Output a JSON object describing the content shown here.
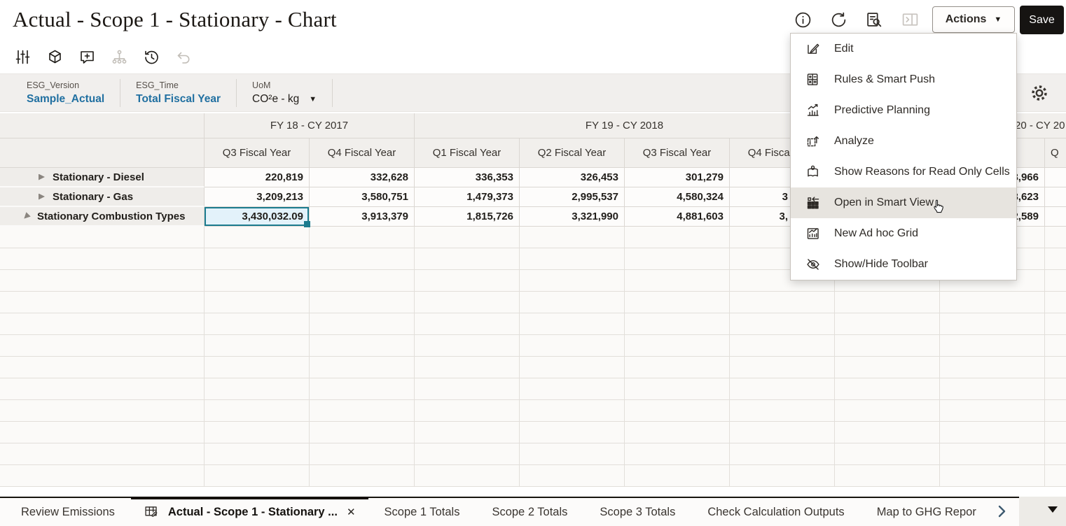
{
  "colors": {
    "accent_blue": "#2170a1",
    "selection_teal": "#1b7b8e",
    "save_button_bg": "#161412",
    "pov_bg": "#f1efed",
    "header_cell_bg": "#f1efec",
    "menu_highlight": "#e7e4df"
  },
  "header": {
    "title": "Actual - Scope 1 - Stationary - Chart",
    "icons": [
      {
        "name": "info-icon"
      },
      {
        "name": "refresh-icon"
      },
      {
        "name": "job-console-icon"
      },
      {
        "name": "open-panel-icon",
        "disabled": true
      }
    ],
    "actions_label": "Actions",
    "actions_caret": "▼",
    "save_label": "Save"
  },
  "toolbar": {
    "icons": [
      {
        "name": "adjust-pov-icon",
        "disabled": false
      },
      {
        "name": "cube-icon",
        "disabled": false
      },
      {
        "name": "add-comment-icon",
        "disabled": false
      },
      {
        "name": "hierarchy-icon",
        "disabled": true
      },
      {
        "name": "history-icon",
        "disabled": false
      },
      {
        "name": "undo-icon",
        "disabled": true
      }
    ]
  },
  "pov": {
    "items": [
      {
        "label": "ESG_Version",
        "value": "Sample_Actual",
        "style": "link"
      },
      {
        "label": "ESG_Time",
        "value": "Total Fiscal Year",
        "style": "link"
      },
      {
        "label": "UoM",
        "value": "CO²e - kg",
        "style": "dropdown",
        "caret": "▼"
      }
    ],
    "gear": "settings-gear-icon"
  },
  "grid": {
    "groups": [
      {
        "label": "FY 18 - CY 2017",
        "span": 2
      },
      {
        "label": "FY 19 - CY 2018",
        "span": 4
      },
      {
        "label": "20 - CY 20",
        "span": 3,
        "fragment": true
      }
    ],
    "columns": [
      "Q3 Fiscal Year",
      "Q4 Fiscal Year",
      "Q1 Fiscal Year",
      "Q2 Fiscal Year",
      "Q3 Fiscal Year",
      "Q4 Fiscal Year",
      "",
      "r",
      "Q"
    ],
    "rows": [
      {
        "label": "Stationary - Diesel",
        "expanded": false,
        "indent": 1,
        "values": [
          "220,819",
          "332,628",
          "336,353",
          "326,453",
          "301,279",
          "",
          "",
          "3,966",
          ""
        ]
      },
      {
        "label": "Stationary - Gas",
        "expanded": false,
        "indent": 1,
        "values": [
          "3,209,213",
          "3,580,751",
          "1,479,373",
          "2,995,537",
          "4,580,324",
          "3",
          "",
          "3,623",
          ""
        ]
      },
      {
        "label": "Stationary Combustion Types",
        "expanded": true,
        "indent": 0,
        "values": [
          "3,430,032.09",
          "3,913,379",
          "1,815,726",
          "3,321,990",
          "4,881,603",
          "3,",
          "",
          "2,589",
          ""
        ]
      }
    ],
    "selected_cell": {
      "row": 2,
      "col": 0,
      "value": "3,430,032.09"
    },
    "empty_row_count": 12
  },
  "menu": {
    "items": [
      {
        "icon": "edit-icon",
        "label": "Edit",
        "active": false
      },
      {
        "icon": "rules-calculator-icon",
        "label": "Rules & Smart Push",
        "active": false
      },
      {
        "icon": "predictive-chart-icon",
        "label": "Predictive Planning",
        "active": false
      },
      {
        "icon": "analyze-icon",
        "label": "Analyze",
        "active": false
      },
      {
        "icon": "read-only-reasons-icon",
        "label": "Show Reasons for Read Only Cells",
        "active": false
      },
      {
        "icon": "smart-view-icon",
        "label": "Open in Smart View",
        "active": true
      },
      {
        "icon": "adhoc-grid-icon",
        "label": "New Ad hoc Grid",
        "active": false
      },
      {
        "icon": "eye-slash-icon",
        "label": "Show/Hide Toolbar",
        "active": false
      }
    ]
  },
  "tabbar": {
    "tabs": [
      {
        "label": "Review Emissions",
        "active": false
      },
      {
        "label": "Actual - Scope 1 - Stationary ...",
        "active": true,
        "icon": "grid-edit-icon",
        "close": "✕"
      },
      {
        "label": "Scope 1 Totals",
        "active": false
      },
      {
        "label": "Scope 2 Totals",
        "active": false
      },
      {
        "label": "Scope 3 Totals",
        "active": false
      },
      {
        "label": "Check Calculation Outputs",
        "active": false
      },
      {
        "label": "Map to GHG Repor",
        "active": false,
        "truncated": true
      }
    ],
    "next_chevron": "chevron-right-icon",
    "overflow_caret": "caret-down-icon"
  }
}
